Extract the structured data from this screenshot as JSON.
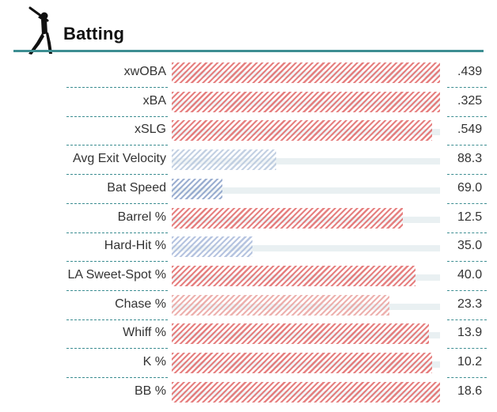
{
  "section": {
    "title": "Batting",
    "icon": "batter-silhouette-icon"
  },
  "colors": {
    "accent": "#3d8e92",
    "good_red": "#e26a6a",
    "mid_red": "#eaa3a0",
    "pale_blue": "#b9c9de",
    "blue": "#8aa1c9",
    "track": "#e9f0f2"
  },
  "metrics": [
    {
      "label": "xwOBA",
      "value": ".439",
      "fill_pct": 100,
      "color": "#e26a6a"
    },
    {
      "label": "xBA",
      "value": ".325",
      "fill_pct": 100,
      "color": "#e26a6a"
    },
    {
      "label": "xSLG",
      "value": ".549",
      "fill_pct": 97,
      "color": "#e26a6a"
    },
    {
      "label": "Avg Exit Velocity",
      "value": "88.3",
      "fill_pct": 39,
      "color": "#b9c9de"
    },
    {
      "label": "Bat Speed",
      "value": "69.0",
      "fill_pct": 19,
      "color": "#8aa1c9"
    },
    {
      "label": "Barrel %",
      "value": "12.5",
      "fill_pct": 86,
      "color": "#e26a6a"
    },
    {
      "label": "Hard-Hit %",
      "value": "35.0",
      "fill_pct": 30,
      "color": "#a9badb"
    },
    {
      "label": "LA Sweet-Spot %",
      "value": "40.0",
      "fill_pct": 91,
      "color": "#e26a6a"
    },
    {
      "label": "Chase %",
      "value": "23.3",
      "fill_pct": 81,
      "color": "#eaa3a0"
    },
    {
      "label": "Whiff %",
      "value": "13.9",
      "fill_pct": 96,
      "color": "#e26a6a"
    },
    {
      "label": "K %",
      "value": "10.2",
      "fill_pct": 97,
      "color": "#e26a6a"
    },
    {
      "label": "BB %",
      "value": "18.6",
      "fill_pct": 100,
      "color": "#e26a6a"
    }
  ]
}
